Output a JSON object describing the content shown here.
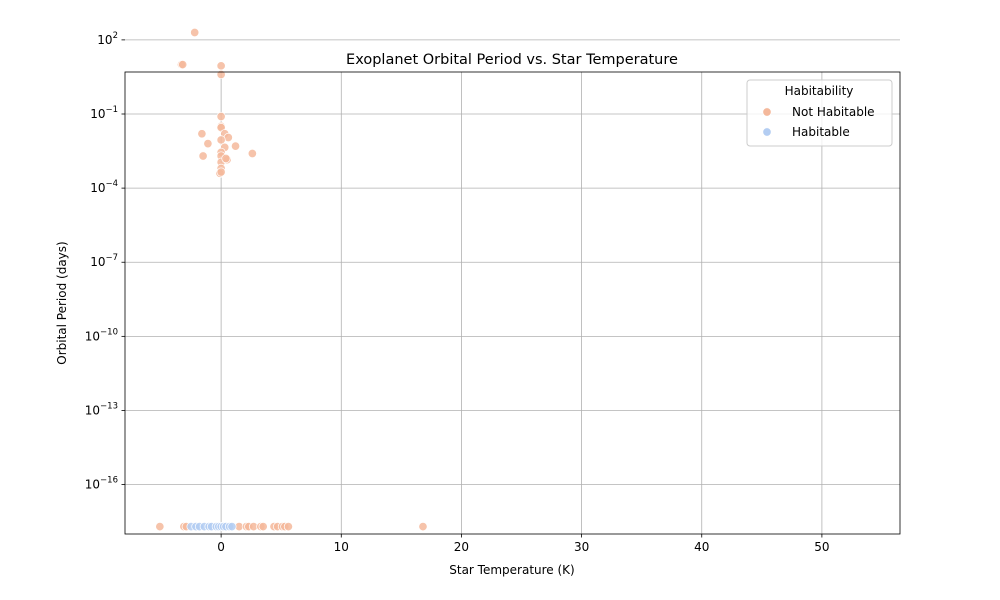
{
  "chart_data": {
    "type": "scatter",
    "title": "Exoplanet Orbital Period vs. Star Temperature",
    "xlabel": "Star Temperature (K)",
    "ylabel": "Orbital Period (days)",
    "xscale": "linear",
    "yscale": "log",
    "xlim": [
      -8,
      56.5
    ],
    "ylim_log10": [
      -18.0,
      0.7
    ],
    "xticks": [
      0,
      10,
      20,
      30,
      40,
      50
    ],
    "xtick_labels": [
      "0",
      "10",
      "20",
      "30",
      "40",
      "50"
    ],
    "yticks_log10": [
      2,
      -1,
      -4,
      -7,
      -10,
      -13,
      -16
    ],
    "ytick_labels": [
      {
        "base": "10",
        "exp": "2"
      },
      {
        "base": "10",
        "exp": "−1"
      },
      {
        "base": "10",
        "exp": "−4"
      },
      {
        "base": "10",
        "exp": "−7"
      },
      {
        "base": "10",
        "exp": "−10"
      },
      {
        "base": "10",
        "exp": "−13"
      },
      {
        "base": "10",
        "exp": "−16"
      }
    ],
    "grid": true,
    "legend": {
      "title": "Habitability",
      "placement": "top-right",
      "entries": [
        "Not Habitable",
        "Habitable"
      ]
    },
    "series": [
      {
        "name": "Not Habitable",
        "color": "#f4b89b",
        "points": [
          [
            -2.2,
            2.3
          ],
          [
            -3.3,
            1.0
          ],
          [
            -3.2,
            1.0
          ],
          [
            0.0,
            0.95
          ],
          [
            0.0,
            0.6
          ],
          [
            0.0,
            -1.1
          ],
          [
            0.0,
            -1.5
          ],
          [
            0.0,
            -1.55
          ],
          [
            0.3,
            -1.8
          ],
          [
            0.6,
            -1.95
          ],
          [
            -1.6,
            -1.8
          ],
          [
            0.0,
            -2.05
          ],
          [
            -1.1,
            -2.2
          ],
          [
            0.3,
            -2.35
          ],
          [
            1.2,
            -2.3
          ],
          [
            -1.5,
            -2.7
          ],
          [
            0.0,
            -2.55
          ],
          [
            0.0,
            -2.7
          ],
          [
            0.0,
            -2.95
          ],
          [
            0.5,
            -2.85
          ],
          [
            0.4,
            -2.8
          ],
          [
            2.6,
            -2.6
          ],
          [
            0.0,
            -3.2
          ],
          [
            -0.1,
            -3.4
          ],
          [
            0.0,
            -3.35
          ],
          [
            -5.1,
            -17.7
          ],
          [
            -3.1,
            -17.7
          ],
          [
            -2.9,
            -17.7
          ],
          [
            1.5,
            -17.7
          ],
          [
            2.1,
            -17.7
          ],
          [
            2.3,
            -17.7
          ],
          [
            2.7,
            -17.7
          ],
          [
            3.3,
            -17.7
          ],
          [
            3.5,
            -17.7
          ],
          [
            4.4,
            -17.7
          ],
          [
            4.7,
            -17.7
          ],
          [
            5.1,
            -17.7
          ],
          [
            5.3,
            -17.7
          ],
          [
            5.6,
            -17.7
          ],
          [
            16.8,
            -17.7
          ]
        ]
      },
      {
        "name": "Habitable",
        "color": "#b3cdf2",
        "points": [
          [
            -2.5,
            -17.7
          ],
          [
            -2.1,
            -17.7
          ],
          [
            -1.8,
            -17.7
          ],
          [
            -1.4,
            -17.7
          ],
          [
            -1.0,
            -17.7
          ],
          [
            -0.8,
            -17.7
          ],
          [
            -0.4,
            -17.7
          ],
          [
            -0.2,
            -17.7
          ],
          [
            0.0,
            -17.7
          ],
          [
            0.2,
            -17.7
          ],
          [
            0.4,
            -17.7
          ],
          [
            0.7,
            -17.7
          ],
          [
            0.9,
            -17.7
          ]
        ]
      }
    ]
  }
}
